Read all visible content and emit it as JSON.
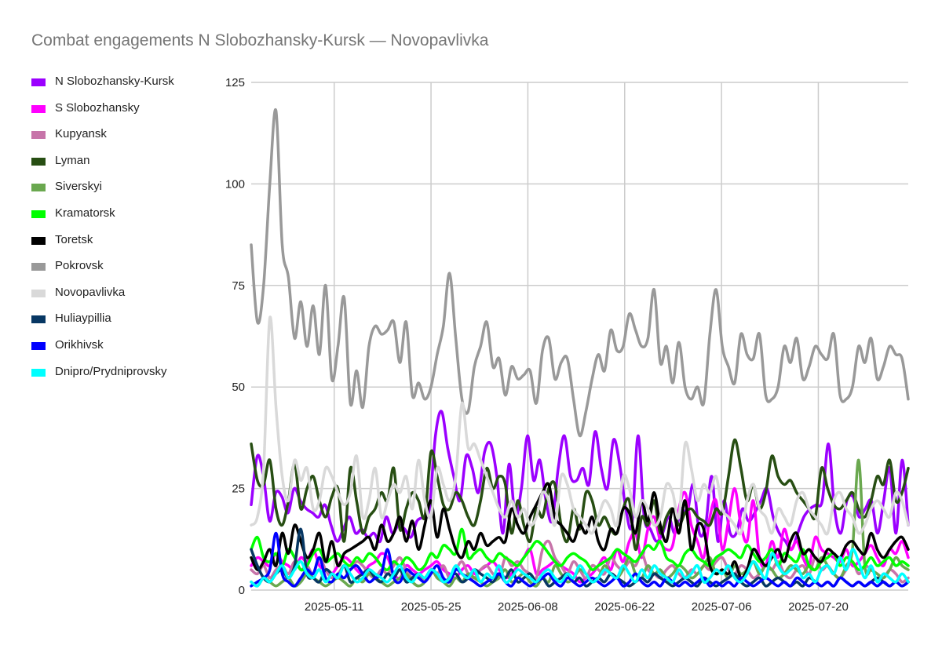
{
  "chart_data": {
    "type": "line",
    "title": "Combat engagements N Slobozhansky-Kursk — Novopavlivka",
    "xlabel": "",
    "ylabel": "",
    "x_start": "2025-04-29",
    "x_end": "2025-08-02",
    "xticks": [
      "2025-05-11",
      "2025-05-25",
      "2025-06-08",
      "2025-06-22",
      "2025-07-06",
      "2025-07-20"
    ],
    "ylim": [
      0,
      125
    ],
    "yticks": [
      0,
      25,
      50,
      75,
      100,
      125
    ],
    "grid": true,
    "legend_position": "left",
    "series": [
      {
        "name": "N Slobozhansky-Kursk",
        "color": "#9b00ff",
        "values": [
          21,
          33,
          28,
          17,
          24,
          23,
          19,
          25,
          22,
          20,
          19,
          18,
          21,
          16,
          12,
          15,
          18,
          14,
          15,
          13,
          14,
          12,
          18,
          14,
          16,
          15,
          13,
          17,
          18,
          20,
          38,
          44,
          35,
          28,
          22,
          33,
          30,
          24,
          34,
          36,
          28,
          14,
          31,
          18,
          25,
          38,
          27,
          32,
          22,
          17,
          30,
          38,
          28,
          27,
          30,
          26,
          39,
          30,
          25,
          37,
          31,
          20,
          16,
          38,
          18,
          15,
          12,
          14,
          18,
          14,
          20,
          19,
          26,
          14,
          16,
          28,
          12,
          22,
          14,
          14,
          20,
          17,
          19,
          22,
          25,
          18,
          14,
          12,
          10,
          14,
          18,
          20,
          21,
          22,
          36,
          20,
          14,
          22,
          23,
          18,
          20,
          22,
          14,
          22,
          30,
          14,
          32,
          16
        ]
      },
      {
        "name": "S Slobozhansky",
        "color": "#ff00ff",
        "values": [
          6,
          8,
          7,
          6,
          9,
          7,
          6,
          5,
          8,
          7,
          10,
          6,
          5,
          4,
          6,
          8,
          7,
          5,
          4,
          6,
          7,
          9,
          8,
          4,
          3,
          6,
          5,
          4,
          5,
          6,
          7,
          5,
          4,
          3,
          5,
          6,
          4,
          5,
          6,
          7,
          5,
          3,
          4,
          6,
          8,
          10,
          4,
          5,
          6,
          7,
          6,
          5,
          4,
          2,
          3,
          4,
          6,
          8,
          5,
          10,
          7,
          12,
          14,
          8,
          15,
          18,
          12,
          10,
          11,
          20,
          24,
          16,
          12,
          8,
          18,
          22,
          10,
          17,
          25,
          16,
          12,
          22,
          8,
          6,
          12,
          8,
          15,
          10,
          12,
          8,
          6,
          13,
          10,
          9,
          8,
          7,
          10,
          6,
          7,
          9,
          11,
          8,
          6,
          10,
          9,
          12,
          8
        ]
      },
      {
        "name": "Kupyansk",
        "color": "#c774a9",
        "values": [
          5,
          4,
          6,
          3,
          5,
          6,
          4,
          7,
          5,
          6,
          4,
          8,
          5,
          3,
          4,
          6,
          5,
          7,
          6,
          4,
          3,
          5,
          4,
          6,
          8,
          5,
          3,
          4,
          2,
          5,
          4,
          6,
          3,
          5,
          7,
          4,
          3,
          5,
          6,
          4,
          3,
          8,
          6,
          7,
          5,
          4,
          3,
          10,
          12,
          8,
          6,
          4,
          7,
          5,
          3,
          6,
          5,
          4,
          8,
          6,
          5,
          7,
          6,
          9,
          5,
          4,
          3,
          5,
          6,
          4,
          3,
          5,
          4,
          6,
          5,
          7,
          8,
          5,
          4,
          6,
          5,
          3,
          4,
          6,
          5,
          7,
          4,
          3,
          5,
          6,
          4,
          8,
          5,
          6,
          4,
          3,
          5,
          7,
          4,
          6,
          5,
          4,
          3,
          5,
          4,
          2,
          3
        ]
      },
      {
        "name": "Lyman",
        "color": "#274e13",
        "values": [
          36,
          27,
          26,
          32,
          20,
          16,
          22,
          31,
          20,
          25,
          28,
          22,
          18,
          23,
          25,
          12,
          30,
          22,
          14,
          18,
          20,
          24,
          22,
          30,
          15,
          20,
          24,
          22,
          18,
          34,
          28,
          21,
          20,
          24,
          22,
          18,
          16,
          22,
          30,
          25,
          28,
          26,
          14,
          22,
          16,
          12,
          20,
          18,
          25,
          26,
          16,
          12,
          20,
          15,
          24,
          22,
          16,
          18,
          15,
          14,
          20,
          22,
          10,
          18,
          16,
          22,
          14,
          18,
          20,
          16,
          19,
          20,
          18,
          17,
          16,
          20,
          19,
          28,
          37,
          30,
          22,
          26,
          20,
          24,
          33,
          28,
          26,
          27,
          24,
          22,
          20,
          18,
          30,
          25,
          21,
          20,
          22,
          24,
          20,
          18,
          22,
          28,
          26,
          32,
          22,
          24,
          30
        ]
      },
      {
        "name": "Siverskyi",
        "color": "#6aa84f",
        "values": [
          2,
          1,
          3,
          2,
          1,
          2,
          3,
          1,
          2,
          4,
          3,
          2,
          1,
          2,
          3,
          2,
          1,
          3,
          2,
          4,
          3,
          2,
          1,
          2,
          3,
          4,
          2,
          1,
          2,
          5,
          3,
          2,
          1,
          3,
          2,
          4,
          3,
          2,
          1,
          2,
          3,
          5,
          2,
          3,
          4,
          2,
          1,
          3,
          2,
          6,
          4,
          2,
          3,
          5,
          4,
          2,
          3,
          6,
          4,
          3,
          5,
          8,
          4,
          3,
          6,
          4,
          5,
          3,
          4,
          6,
          5,
          3,
          4,
          6,
          8,
          4,
          5,
          3,
          6,
          4,
          5,
          7,
          4,
          6,
          5,
          3,
          4,
          6,
          5,
          4,
          6,
          5,
          8,
          6,
          4,
          3,
          6,
          10,
          32,
          6,
          5,
          4,
          3,
          5,
          8,
          6,
          5
        ]
      },
      {
        "name": "Kramatorsk",
        "color": "#00ff00",
        "values": [
          10,
          13,
          8,
          7,
          9,
          6,
          10,
          8,
          5,
          6,
          9,
          10,
          7,
          8,
          9,
          7,
          6,
          8,
          7,
          9,
          8,
          6,
          5,
          7,
          6,
          8,
          7,
          5,
          6,
          9,
          8,
          11,
          10,
          9,
          15,
          8,
          9,
          10,
          8,
          7,
          9,
          8,
          7,
          6,
          8,
          10,
          12,
          11,
          9,
          7,
          6,
          8,
          9,
          8,
          7,
          5,
          6,
          7,
          8,
          10,
          9,
          8,
          7,
          9,
          11,
          10,
          12,
          8,
          7,
          6,
          9,
          10,
          8,
          7,
          6,
          8,
          9,
          10,
          9,
          8,
          11,
          9,
          7,
          8,
          10,
          6,
          9,
          8,
          7,
          10,
          6,
          5,
          7,
          8,
          9,
          6,
          8,
          7,
          5,
          6,
          8,
          6,
          7,
          8,
          6,
          7,
          6
        ]
      },
      {
        "name": "Toretsk",
        "color": "#000000",
        "values": [
          8,
          5,
          7,
          10,
          6,
          14,
          9,
          16,
          12,
          8,
          10,
          14,
          7,
          12,
          6,
          9,
          10,
          11,
          12,
          13,
          10,
          16,
          12,
          14,
          18,
          12,
          17,
          10,
          16,
          22,
          13,
          20,
          15,
          10,
          8,
          12,
          10,
          14,
          11,
          12,
          13,
          12,
          20,
          16,
          14,
          18,
          21,
          24,
          26,
          18,
          16,
          14,
          12,
          16,
          14,
          18,
          12,
          10,
          15,
          14,
          20,
          19,
          14,
          22,
          17,
          24,
          16,
          12,
          20,
          14,
          22,
          10,
          16,
          15,
          6,
          4,
          5,
          4,
          7,
          3,
          5,
          10,
          8,
          6,
          8,
          10,
          7,
          12,
          14,
          9,
          10,
          8,
          7,
          10,
          9,
          8,
          11,
          12,
          10,
          9,
          14,
          10,
          8,
          10,
          12,
          13,
          10
        ]
      },
      {
        "name": "Pokrovsk",
        "color": "#999999",
        "values": [
          85,
          66,
          75,
          100,
          118,
          85,
          77,
          62,
          71,
          60,
          70,
          58,
          75,
          52,
          60,
          72,
          46,
          54,
          45,
          60,
          65,
          63,
          64,
          66,
          56,
          66,
          48,
          51,
          47,
          50,
          58,
          65,
          78,
          62,
          47,
          44,
          55,
          60,
          66,
          55,
          57,
          48,
          55,
          52,
          53,
          54,
          46,
          59,
          62,
          52,
          56,
          57,
          47,
          38,
          44,
          52,
          58,
          54,
          64,
          59,
          60,
          68,
          64,
          60,
          62,
          74,
          56,
          60,
          51,
          61,
          50,
          47,
          50,
          46,
          63,
          74,
          60,
          55,
          51,
          63,
          58,
          57,
          63,
          48,
          47,
          50,
          60,
          56,
          62,
          52,
          55,
          60,
          58,
          57,
          63,
          48,
          47,
          50,
          60,
          56,
          62,
          52,
          55,
          60,
          58,
          57,
          47
        ]
      },
      {
        "name": "Novopavlivka",
        "color": "#d9d9d9",
        "values": [
          16,
          18,
          30,
          67,
          45,
          28,
          22,
          32,
          27,
          30,
          20,
          22,
          30,
          28,
          24,
          21,
          24,
          33,
          18,
          22,
          30,
          18,
          22,
          26,
          24,
          28,
          20,
          32,
          22,
          18,
          30,
          26,
          22,
          28,
          46,
          35,
          36,
          32,
          28,
          24,
          20,
          18,
          22,
          18,
          20,
          16,
          18,
          24,
          22,
          16,
          28,
          26,
          20,
          18,
          16,
          14,
          18,
          22,
          20,
          16,
          28,
          25,
          18,
          22,
          20,
          16,
          18,
          26,
          24,
          18,
          36,
          30,
          22,
          26,
          24,
          28,
          20,
          18,
          16,
          14,
          22,
          26,
          20,
          18,
          14,
          20,
          18,
          16,
          22,
          24,
          20,
          18,
          16,
          14,
          22,
          24,
          20,
          18,
          14,
          16,
          20,
          22,
          20,
          18,
          24,
          22,
          16
        ]
      },
      {
        "name": "Huliaypillia",
        "color": "#073763",
        "values": [
          10,
          6,
          3,
          2,
          4,
          5,
          3,
          6,
          15,
          4,
          3,
          2,
          5,
          4,
          3,
          6,
          2,
          3,
          4,
          5,
          3,
          2,
          4,
          3,
          5,
          2,
          3,
          4,
          3,
          5,
          4,
          2,
          3,
          4,
          2,
          3,
          5,
          4,
          3,
          2,
          4,
          3,
          5,
          2,
          3,
          4,
          2,
          3,
          1,
          2,
          3,
          4,
          2,
          3,
          1,
          2,
          3,
          2,
          4,
          3,
          2,
          1,
          2,
          3,
          2,
          4,
          3,
          2,
          1,
          2,
          3,
          2,
          1,
          3,
          2,
          1,
          2,
          3,
          4,
          2,
          1,
          2,
          3,
          1,
          2,
          3,
          2,
          1,
          2,
          1,
          3,
          2,
          1,
          2,
          1,
          3,
          2,
          1,
          2,
          1,
          2,
          3,
          2,
          1,
          2,
          1,
          2
        ]
      },
      {
        "name": "Orikhivsk",
        "color": "#0000ff",
        "values": [
          1,
          2,
          3,
          5,
          14,
          4,
          2,
          1,
          3,
          5,
          4,
          8,
          3,
          2,
          4,
          3,
          5,
          6,
          4,
          2,
          3,
          4,
          10,
          3,
          2,
          5,
          4,
          3,
          2,
          4,
          6,
          3,
          2,
          5,
          4,
          3,
          2,
          1,
          2,
          3,
          4,
          2,
          1,
          3,
          2,
          1,
          2,
          3,
          4,
          2,
          1,
          3,
          2,
          1,
          2,
          3,
          2,
          1,
          2,
          3,
          1,
          2,
          4,
          2,
          1,
          2,
          1,
          3,
          2,
          1,
          2,
          1,
          2,
          3,
          1,
          2,
          1,
          2,
          1,
          3,
          2,
          1,
          2,
          3,
          2,
          1,
          2,
          1,
          3,
          2,
          1,
          2,
          1,
          2,
          1,
          3,
          2,
          1,
          2,
          1,
          2,
          1,
          2,
          1,
          2,
          1,
          2
        ]
      },
      {
        "name": "Dnipro/Prydniprovsky",
        "color": "#00ffff",
        "values": [
          2,
          1,
          3,
          2,
          4,
          6,
          3,
          5,
          7,
          4,
          3,
          5,
          2,
          4,
          3,
          6,
          4,
          2,
          3,
          5,
          4,
          3,
          2,
          4,
          6,
          3,
          2,
          4,
          3,
          5,
          4,
          2,
          3,
          6,
          4,
          3,
          5,
          2,
          4,
          3,
          6,
          2,
          3,
          5,
          4,
          3,
          2,
          4,
          5,
          3,
          2,
          4,
          3,
          6,
          4,
          2,
          3,
          5,
          4,
          3,
          6,
          4,
          2,
          5,
          3,
          6,
          4,
          3,
          2,
          5,
          3,
          4,
          6,
          2,
          3,
          5,
          4,
          6,
          3,
          2,
          4,
          7,
          5,
          3,
          9,
          6,
          4,
          5,
          6,
          3,
          4,
          2,
          5,
          6,
          4,
          8,
          5,
          10,
          7,
          3,
          6,
          2,
          4,
          3,
          2,
          4,
          2
        ]
      }
    ]
  }
}
